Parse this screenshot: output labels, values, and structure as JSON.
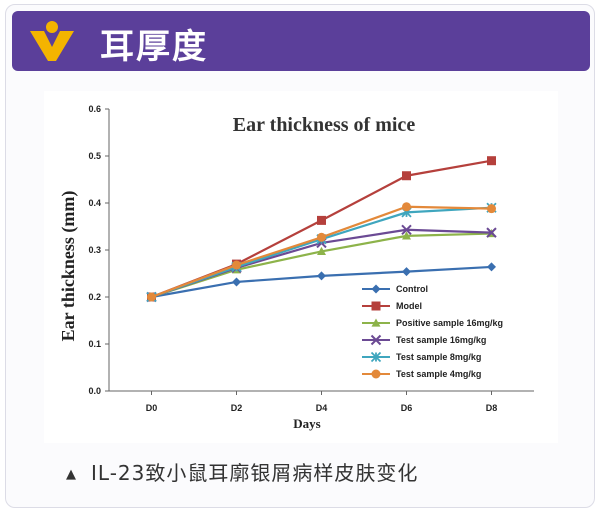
{
  "header": {
    "title": "耳厚度"
  },
  "caption": {
    "marker": "▲",
    "text": "IL-23致小鼠耳廓银屑病样皮肤变化"
  },
  "chart_data": {
    "type": "line",
    "title": "Ear thickness of mice",
    "xlabel": "Days",
    "ylabel": "Ear thickness (mm)",
    "categories": [
      "D0",
      "D2",
      "D4",
      "D6",
      "D8"
    ],
    "ylim": [
      0,
      0.6
    ],
    "yticks": [
      "0.0",
      "0.1",
      "0.2",
      "0.3",
      "0.4",
      "0.5",
      "0.6"
    ],
    "grid": false,
    "legend_position": "bottom-right",
    "series": [
      {
        "name": "Control",
        "color": "#3a6fb0",
        "marker": "diamond",
        "values": [
          0.2,
          0.232,
          0.245,
          0.254,
          0.264
        ]
      },
      {
        "name": "Model",
        "color": "#b5403c",
        "marker": "square",
        "values": [
          0.2,
          0.27,
          0.363,
          0.458,
          0.49
        ]
      },
      {
        "name": "Positive sample 16mg/kg",
        "color": "#8db34a",
        "marker": "triangle",
        "values": [
          0.2,
          0.258,
          0.297,
          0.33,
          0.335
        ]
      },
      {
        "name": "Test sample 16mg/kg",
        "color": "#6b4a94",
        "marker": "x",
        "values": [
          0.2,
          0.262,
          0.315,
          0.343,
          0.337
        ]
      },
      {
        "name": "Test sample 8mg/kg",
        "color": "#3fa6be",
        "marker": "star",
        "values": [
          0.2,
          0.264,
          0.323,
          0.38,
          0.39
        ]
      },
      {
        "name": "Test sample 4mg/kg",
        "color": "#e3893a",
        "marker": "circle",
        "values": [
          0.2,
          0.268,
          0.327,
          0.392,
          0.388
        ]
      }
    ]
  }
}
